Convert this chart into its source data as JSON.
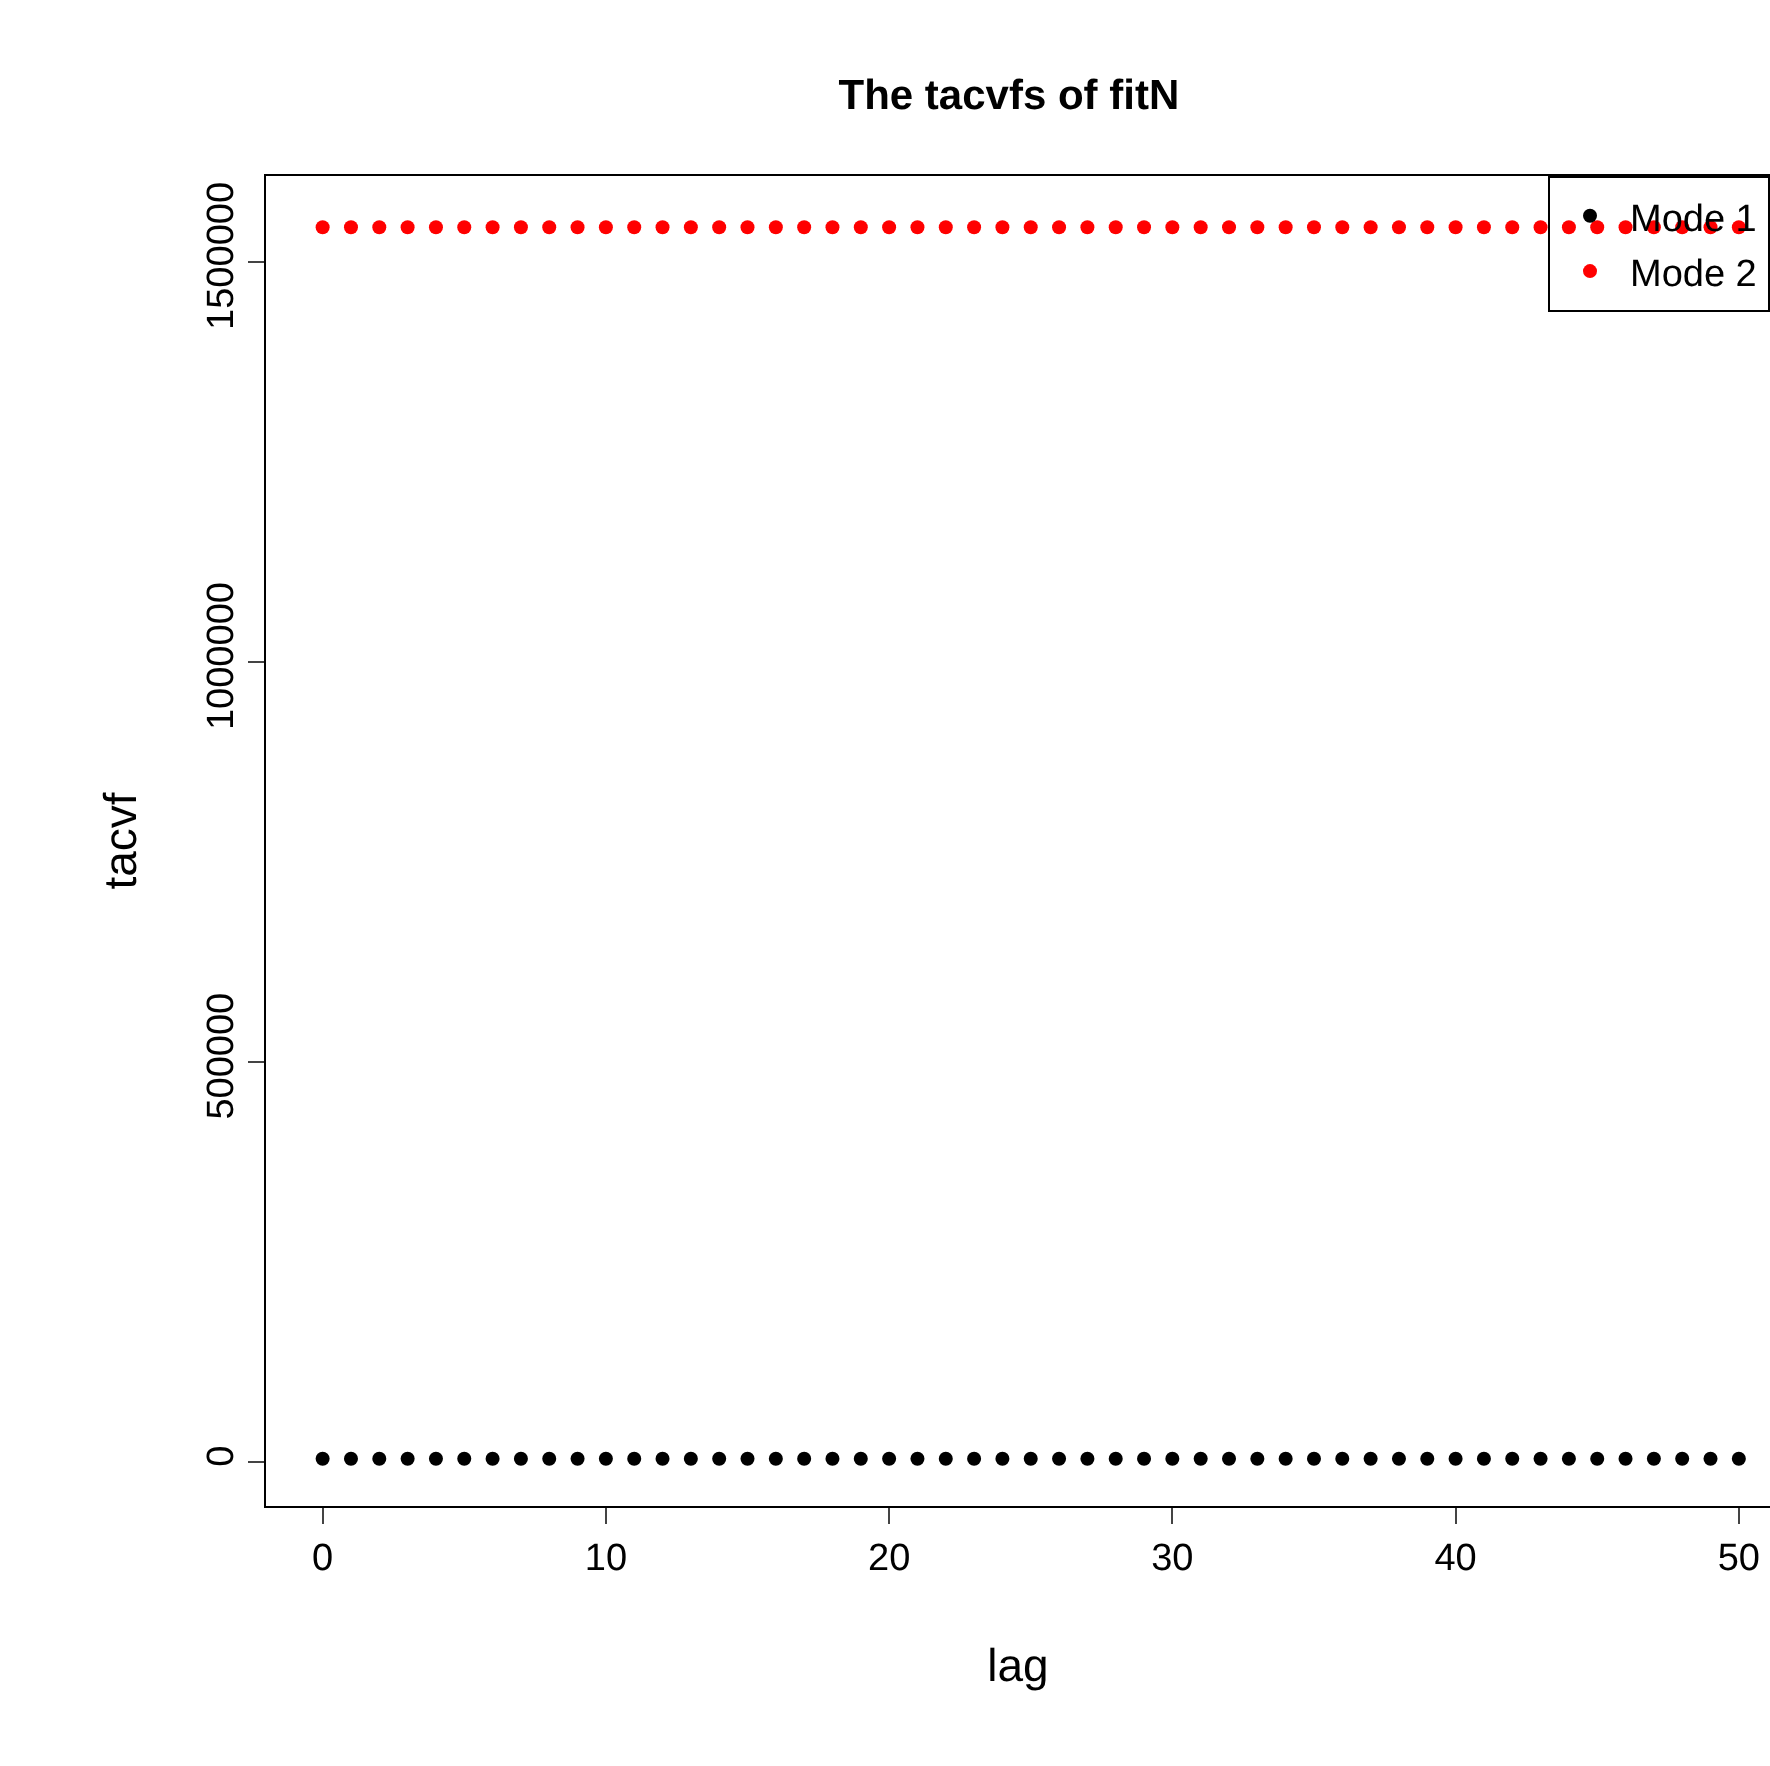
{
  "chart_data": {
    "type": "scatter",
    "title": "The tacvfs of fitN",
    "xlabel": "lag",
    "ylabel": "tacvf",
    "x": [
      0,
      1,
      2,
      3,
      4,
      5,
      6,
      7,
      8,
      9,
      10,
      11,
      12,
      13,
      14,
      15,
      16,
      17,
      18,
      19,
      20,
      21,
      22,
      23,
      24,
      25,
      26,
      27,
      28,
      29,
      30,
      31,
      32,
      33,
      34,
      35,
      36,
      37,
      38,
      39,
      40,
      41,
      42,
      43,
      44,
      45,
      46,
      47,
      48,
      49,
      50
    ],
    "series": [
      {
        "name": "Mode 1",
        "color": "#000000",
        "values": [
          4000,
          4000,
          4000,
          4000,
          4000,
          4000,
          4000,
          4000,
          4000,
          4000,
          4000,
          4000,
          4000,
          4000,
          4000,
          4000,
          4000,
          4000,
          4000,
          4000,
          4000,
          4000,
          4000,
          4000,
          4000,
          4000,
          4000,
          4000,
          4000,
          4000,
          4000,
          4000,
          4000,
          4000,
          4000,
          4000,
          4000,
          4000,
          4000,
          4000,
          4000,
          4000,
          4000,
          4000,
          4000,
          4000,
          4000,
          4000,
          4000,
          4000,
          4000
        ]
      },
      {
        "name": "Mode 2",
        "color": "#ff0000",
        "values": [
          1543000,
          1543000,
          1543000,
          1543000,
          1543000,
          1543000,
          1543000,
          1543000,
          1543000,
          1543000,
          1543000,
          1543000,
          1543000,
          1543000,
          1543000,
          1543000,
          1543000,
          1543000,
          1543000,
          1543000,
          1543000,
          1543000,
          1543000,
          1543000,
          1543000,
          1543000,
          1543000,
          1543000,
          1543000,
          1543000,
          1543000,
          1543000,
          1543000,
          1543000,
          1543000,
          1543000,
          1543000,
          1543000,
          1543000,
          1543000,
          1543000,
          1543000,
          1543000,
          1543000,
          1543000,
          1543000,
          1543000,
          1543000,
          1543000,
          1543000,
          1543000
        ]
      }
    ],
    "xlim": [
      -2,
      51.1
    ],
    "xticks": [
      0,
      10,
      20,
      30,
      40,
      50
    ],
    "ylim": [
      -55000,
      1607000
    ],
    "yticks": [
      0,
      500000,
      1000000,
      1500000
    ],
    "grid": false,
    "legend": "top right",
    "marker": "circle"
  }
}
